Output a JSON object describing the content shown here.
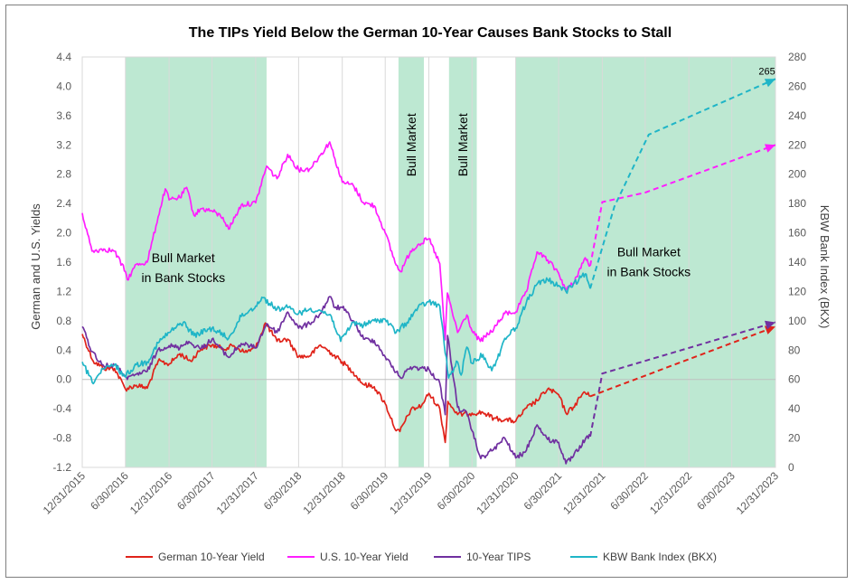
{
  "chart_data": {
    "type": "line",
    "title": "The TIPs Yield Below the German 10-Year Causes Bank Stocks to Stall",
    "y_left_label": "German and U.S. Yields",
    "y_right_label": "KBW Bank Index (BKX)",
    "y_left_range": [
      -1.2,
      4.4
    ],
    "y_left_ticks": [
      "4.4",
      "4.0",
      "3.6",
      "3.2",
      "2.8",
      "2.4",
      "2.0",
      "1.6",
      "1.2",
      "0.8",
      "0.4",
      "0.0",
      "-0.4",
      "-0.8",
      "-1.2"
    ],
    "y_right_range": [
      0,
      280
    ],
    "y_right_ticks": [
      "280",
      "260",
      "240",
      "220",
      "200",
      "180",
      "160",
      "140",
      "120",
      "100",
      "80",
      "60",
      "40",
      "20",
      "0"
    ],
    "x_range": [
      "2015-12-31",
      "2023-12-31"
    ],
    "x_ticks": [
      "12/31/2015",
      "6/30/2016",
      "12/31/2016",
      "6/30/2017",
      "12/31/2017",
      "6/30/2018",
      "12/31/2018",
      "6/30/2019",
      "12/31/2019",
      "6/30/2020",
      "12/31/2020",
      "6/30/2021",
      "12/31/2021",
      "6/30/2022",
      "12/31/2022",
      "6/30/2023",
      "12/31/2023"
    ],
    "grid": "vertical",
    "legend": "bottom",
    "shaded_regions": [
      {
        "start": "2016-06-30",
        "end": "2018-02-15",
        "label": ""
      },
      {
        "start": "2019-08-25",
        "end": "2019-12-10",
        "label": "Bull Market"
      },
      {
        "start": "2020-03-25",
        "end": "2020-07-20",
        "label": "Bull Market"
      },
      {
        "start": "2020-12-31",
        "end": "2023-12-31",
        "label": ""
      }
    ],
    "annotations": [
      {
        "text": "Bull Market",
        "x": "2017-03-01",
        "y": 1.6
      },
      {
        "text": "in Bank Stocks",
        "x": "2017-03-01",
        "y": 1.33
      },
      {
        "text": "Bull Market",
        "x": "2022-07-15",
        "y": 1.68
      },
      {
        "text": "in Bank Stocks",
        "x": "2022-07-15",
        "y": 1.41
      },
      {
        "text": "265",
        "x": "2023-11-25",
        "y_right": 268
      }
    ],
    "series": [
      {
        "name": "German 10-Year Yield",
        "color": "#e0231a",
        "axis": "left",
        "points": [
          [
            "2015-12-31",
            0.62
          ],
          [
            "2016-02-15",
            0.25
          ],
          [
            "2016-04-01",
            0.15
          ],
          [
            "2016-05-15",
            0.15
          ],
          [
            "2016-06-30",
            -0.13
          ],
          [
            "2016-08-15",
            -0.08
          ],
          [
            "2016-09-30",
            -0.12
          ],
          [
            "2016-11-15",
            0.25
          ],
          [
            "2016-12-31",
            0.21
          ],
          [
            "2017-02-15",
            0.35
          ],
          [
            "2017-04-01",
            0.25
          ],
          [
            "2017-05-15",
            0.42
          ],
          [
            "2017-06-30",
            0.47
          ],
          [
            "2017-08-15",
            0.42
          ],
          [
            "2017-09-30",
            0.46
          ],
          [
            "2017-11-15",
            0.37
          ],
          [
            "2017-12-31",
            0.43
          ],
          [
            "2018-02-10",
            0.77
          ],
          [
            "2018-03-31",
            0.52
          ],
          [
            "2018-05-15",
            0.55
          ],
          [
            "2018-06-30",
            0.31
          ],
          [
            "2018-08-15",
            0.32
          ],
          [
            "2018-09-30",
            0.47
          ],
          [
            "2018-11-15",
            0.36
          ],
          [
            "2018-12-31",
            0.24
          ],
          [
            "2019-02-15",
            0.1
          ],
          [
            "2019-03-31",
            -0.07
          ],
          [
            "2019-05-15",
            -0.1
          ],
          [
            "2019-06-30",
            -0.33
          ],
          [
            "2019-08-15",
            -0.7
          ],
          [
            "2019-08-31",
            -0.71
          ],
          [
            "2019-10-15",
            -0.42
          ],
          [
            "2019-11-30",
            -0.36
          ],
          [
            "2019-12-31",
            -0.19
          ],
          [
            "2020-02-15",
            -0.4
          ],
          [
            "2020-03-09",
            -0.86
          ],
          [
            "2020-03-20",
            -0.3
          ],
          [
            "2020-04-30",
            -0.48
          ],
          [
            "2020-06-30",
            -0.46
          ],
          [
            "2020-08-15",
            -0.45
          ],
          [
            "2020-09-30",
            -0.53
          ],
          [
            "2020-11-15",
            -0.55
          ],
          [
            "2020-12-31",
            -0.57
          ],
          [
            "2021-02-15",
            -0.39
          ],
          [
            "2021-03-31",
            -0.29
          ],
          [
            "2021-05-15",
            -0.13
          ],
          [
            "2021-06-30",
            -0.21
          ],
          [
            "2021-07-31",
            -0.46
          ],
          [
            "2021-08-31",
            -0.38
          ],
          [
            "2021-10-15",
            -0.17
          ],
          [
            "2021-11-10",
            -0.23
          ]
        ],
        "projection": [
          [
            "2021-11-10",
            -0.23
          ],
          [
            "2023-12-31",
            0.72
          ]
        ]
      },
      {
        "name": "U.S. 10-Year Yield",
        "color": "#ff1eff",
        "axis": "left",
        "points": [
          [
            "2015-12-31",
            2.27
          ],
          [
            "2016-02-10",
            1.75
          ],
          [
            "2016-03-31",
            1.78
          ],
          [
            "2016-05-15",
            1.75
          ],
          [
            "2016-06-30",
            1.47
          ],
          [
            "2016-07-08",
            1.36
          ],
          [
            "2016-08-15",
            1.57
          ],
          [
            "2016-09-30",
            1.6
          ],
          [
            "2016-11-15",
            2.22
          ],
          [
            "2016-12-15",
            2.6
          ],
          [
            "2016-12-31",
            2.45
          ],
          [
            "2017-02-15",
            2.48
          ],
          [
            "2017-03-15",
            2.62
          ],
          [
            "2017-04-15",
            2.24
          ],
          [
            "2017-05-15",
            2.33
          ],
          [
            "2017-06-30",
            2.3
          ],
          [
            "2017-08-15",
            2.21
          ],
          [
            "2017-09-08",
            2.05
          ],
          [
            "2017-10-31",
            2.38
          ],
          [
            "2017-12-31",
            2.41
          ],
          [
            "2018-02-15",
            2.91
          ],
          [
            "2018-03-31",
            2.74
          ],
          [
            "2018-05-15",
            3.07
          ],
          [
            "2018-06-30",
            2.86
          ],
          [
            "2018-08-15",
            2.87
          ],
          [
            "2018-09-30",
            3.06
          ],
          [
            "2018-11-08",
            3.24
          ],
          [
            "2018-11-30",
            3.01
          ],
          [
            "2018-12-31",
            2.69
          ],
          [
            "2019-02-15",
            2.65
          ],
          [
            "2019-03-31",
            2.41
          ],
          [
            "2019-05-15",
            2.37
          ],
          [
            "2019-06-30",
            2.0
          ],
          [
            "2019-08-15",
            1.56
          ],
          [
            "2019-09-03",
            1.47
          ],
          [
            "2019-10-15",
            1.75
          ],
          [
            "2019-11-15",
            1.84
          ],
          [
            "2019-12-31",
            1.92
          ],
          [
            "2020-02-15",
            1.58
          ],
          [
            "2020-03-09",
            0.54
          ],
          [
            "2020-03-18",
            1.18
          ],
          [
            "2020-04-30",
            0.64
          ],
          [
            "2020-06-08",
            0.88
          ],
          [
            "2020-06-30",
            0.66
          ],
          [
            "2020-08-04",
            0.52
          ],
          [
            "2020-09-30",
            0.69
          ],
          [
            "2020-11-15",
            0.9
          ],
          [
            "2020-12-31",
            0.92
          ],
          [
            "2021-02-15",
            1.2
          ],
          [
            "2021-03-31",
            1.74
          ],
          [
            "2021-05-15",
            1.63
          ],
          [
            "2021-06-30",
            1.45
          ],
          [
            "2021-07-31",
            1.22
          ],
          [
            "2021-08-31",
            1.31
          ],
          [
            "2021-10-20",
            1.66
          ],
          [
            "2021-11-10",
            1.55
          ]
        ],
        "projection": [
          [
            "2021-11-10",
            1.55
          ],
          [
            "2021-12-31",
            2.42
          ],
          [
            "2022-06-30",
            2.55
          ],
          [
            "2023-12-31",
            3.2
          ]
        ]
      },
      {
        "name": "10-Year TIPS",
        "color": "#7030a0",
        "axis": "left",
        "points": [
          [
            "2015-12-31",
            0.72
          ],
          [
            "2016-02-10",
            0.38
          ],
          [
            "2016-03-31",
            0.18
          ],
          [
            "2016-05-15",
            0.2
          ],
          [
            "2016-06-30",
            0.05
          ],
          [
            "2016-07-08",
            0.0
          ],
          [
            "2016-08-15",
            0.07
          ],
          [
            "2016-09-30",
            0.11
          ],
          [
            "2016-11-15",
            0.41
          ],
          [
            "2016-12-31",
            0.46
          ],
          [
            "2017-02-15",
            0.43
          ],
          [
            "2017-03-15",
            0.52
          ],
          [
            "2017-05-15",
            0.42
          ],
          [
            "2017-06-30",
            0.55
          ],
          [
            "2017-09-08",
            0.3
          ],
          [
            "2017-10-31",
            0.49
          ],
          [
            "2017-12-31",
            0.43
          ],
          [
            "2018-02-15",
            0.76
          ],
          [
            "2018-03-31",
            0.64
          ],
          [
            "2018-05-15",
            0.92
          ],
          [
            "2018-06-30",
            0.7
          ],
          [
            "2018-08-15",
            0.76
          ],
          [
            "2018-09-30",
            0.9
          ],
          [
            "2018-11-08",
            1.13
          ],
          [
            "2018-11-30",
            0.98
          ],
          [
            "2018-12-31",
            0.98
          ],
          [
            "2019-02-15",
            0.8
          ],
          [
            "2019-03-31",
            0.55
          ],
          [
            "2019-05-15",
            0.53
          ],
          [
            "2019-06-30",
            0.31
          ],
          [
            "2019-08-15",
            0.1
          ],
          [
            "2019-09-03",
            0.02
          ],
          [
            "2019-10-15",
            0.17
          ],
          [
            "2019-12-31",
            0.14
          ],
          [
            "2020-02-15",
            -0.05
          ],
          [
            "2020-03-09",
            -0.48
          ],
          [
            "2020-03-19",
            0.6
          ],
          [
            "2020-04-30",
            -0.38
          ],
          [
            "2020-06-08",
            -0.47
          ],
          [
            "2020-06-30",
            -0.7
          ],
          [
            "2020-08-06",
            -1.08
          ],
          [
            "2020-09-30",
            -0.95
          ],
          [
            "2020-11-15",
            -0.8
          ],
          [
            "2020-12-31",
            -1.07
          ],
          [
            "2021-02-10",
            -0.99
          ],
          [
            "2021-03-31",
            -0.62
          ],
          [
            "2021-05-15",
            -0.82
          ],
          [
            "2021-06-30",
            -0.86
          ],
          [
            "2021-07-31",
            -1.15
          ],
          [
            "2021-08-31",
            -1.05
          ],
          [
            "2021-10-20",
            -0.82
          ],
          [
            "2021-11-10",
            -0.78
          ]
        ],
        "projection": [
          [
            "2021-11-10",
            -0.78
          ],
          [
            "2021-12-31",
            0.08
          ],
          [
            "2023-12-31",
            0.78
          ]
        ]
      },
      {
        "name": "KBW Bank Index (BKX)",
        "color": "#1fb5c7",
        "axis": "right",
        "points": [
          [
            "2015-12-31",
            72
          ],
          [
            "2016-02-11",
            58
          ],
          [
            "2016-03-31",
            67
          ],
          [
            "2016-05-15",
            70
          ],
          [
            "2016-06-27",
            62
          ],
          [
            "2016-08-15",
            70
          ],
          [
            "2016-09-30",
            72
          ],
          [
            "2016-11-15",
            85
          ],
          [
            "2016-12-31",
            92
          ],
          [
            "2017-03-01",
            99
          ],
          [
            "2017-04-15",
            90
          ],
          [
            "2017-06-30",
            95
          ],
          [
            "2017-09-08",
            88
          ],
          [
            "2017-10-31",
            103
          ],
          [
            "2017-12-31",
            110
          ],
          [
            "2018-01-26",
            116
          ],
          [
            "2018-03-31",
            108
          ],
          [
            "2018-05-15",
            109
          ],
          [
            "2018-06-30",
            105
          ],
          [
            "2018-08-15",
            108
          ],
          [
            "2018-09-30",
            107
          ],
          [
            "2018-11-15",
            103
          ],
          [
            "2018-12-24",
            86
          ],
          [
            "2019-02-15",
            99
          ],
          [
            "2019-03-31",
            97
          ],
          [
            "2019-05-15",
            100
          ],
          [
            "2019-06-30",
            101
          ],
          [
            "2019-08-15",
            92
          ],
          [
            "2019-09-30",
            99
          ],
          [
            "2019-11-15",
            109
          ],
          [
            "2019-12-31",
            113
          ],
          [
            "2020-02-15",
            110
          ],
          [
            "2020-03-23",
            61
          ],
          [
            "2020-04-30",
            72
          ],
          [
            "2020-05-15",
            63
          ],
          [
            "2020-06-08",
            82
          ],
          [
            "2020-06-30",
            71
          ],
          [
            "2020-08-15",
            77
          ],
          [
            "2020-09-21",
            66
          ],
          [
            "2020-10-15",
            74
          ],
          [
            "2020-11-15",
            88
          ],
          [
            "2020-12-31",
            95
          ],
          [
            "2021-02-15",
            113
          ],
          [
            "2021-03-31",
            125
          ],
          [
            "2021-05-15",
            128
          ],
          [
            "2021-06-30",
            124
          ],
          [
            "2021-07-31",
            120
          ],
          [
            "2021-10-20",
            132
          ],
          [
            "2021-11-10",
            122
          ]
        ],
        "projection": [
          [
            "2021-11-10",
            122
          ],
          [
            "2022-02-20",
            178
          ],
          [
            "2022-07-15",
            227
          ],
          [
            "2023-12-31",
            265
          ]
        ]
      }
    ]
  }
}
